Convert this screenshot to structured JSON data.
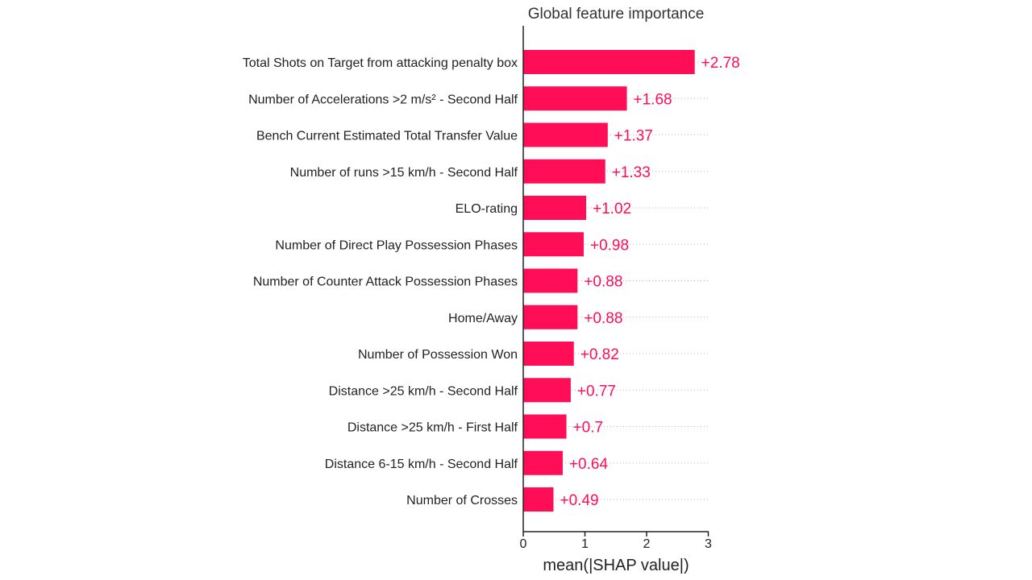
{
  "chart_data": {
    "type": "bar",
    "orientation": "horizontal",
    "title": "Global feature importance",
    "xlabel": "mean(|SHAP value|)",
    "ylabel": "",
    "xlim": [
      0,
      3
    ],
    "xticks": [
      0,
      1,
      2,
      3
    ],
    "bar_color": "#ff0d57",
    "categories": [
      "Total Shots on Target from attacking penalty box",
      "Number of Accelerations >2 m/s² - Second Half",
      "Bench Current Estimated Total Transfer Value",
      "Number of runs >15 km/h - Second Half",
      "ELO-rating",
      "Number of Direct Play Possession Phases",
      "Number of Counter Attack Possession Phases",
      "Home/Away",
      "Number of Possession Won",
      "Distance >25 km/h - Second Half",
      "Distance >25 km/h - First Half",
      "Distance 6-15 km/h - Second Half",
      "Number of Crosses"
    ],
    "values": [
      2.78,
      1.68,
      1.37,
      1.33,
      1.02,
      0.98,
      0.88,
      0.88,
      0.82,
      0.77,
      0.7,
      0.64,
      0.49
    ],
    "value_labels": [
      "+2.78",
      "+1.68",
      "+1.37",
      "+1.33",
      "+1.02",
      "+0.98",
      "+0.88",
      "+0.88",
      "+0.82",
      "+0.77",
      "+0.7",
      "+0.64",
      "+0.49"
    ],
    "grid": "dotted row guides"
  }
}
